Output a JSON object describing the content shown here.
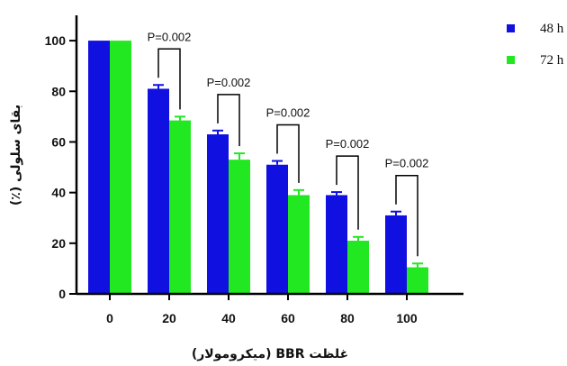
{
  "chart_data": {
    "type": "bar",
    "title": "",
    "xlabel": "غلظت BBR (میکرومولار)",
    "ylabel": "بقای سلولی (٪)",
    "categories": [
      "0",
      "20",
      "40",
      "60",
      "80",
      "100"
    ],
    "series": [
      {
        "name": "48 h",
        "color": "#1010e0",
        "values": [
          100,
          81,
          63,
          51,
          39,
          31
        ],
        "errors": [
          0,
          1.5,
          1.5,
          1.5,
          1.2,
          1.5
        ]
      },
      {
        "name": "72 h",
        "color": "#22e822",
        "values": [
          100,
          68.5,
          53,
          39,
          21,
          10.5
        ],
        "errors": [
          0,
          1.5,
          2.5,
          2,
          1.5,
          1.5
        ]
      }
    ],
    "ylim": [
      0,
      110
    ],
    "yticks": [
      0,
      20,
      40,
      60,
      80,
      100
    ],
    "legend_position": "top-right",
    "grid": false,
    "annotations": [
      {
        "category": "20",
        "text": "P=0.002"
      },
      {
        "category": "40",
        "text": "P=0.002"
      },
      {
        "category": "60",
        "text": "P=0.002"
      },
      {
        "category": "80",
        "text": "P=0.002"
      },
      {
        "category": "100",
        "text": "P=0.002"
      }
    ]
  }
}
